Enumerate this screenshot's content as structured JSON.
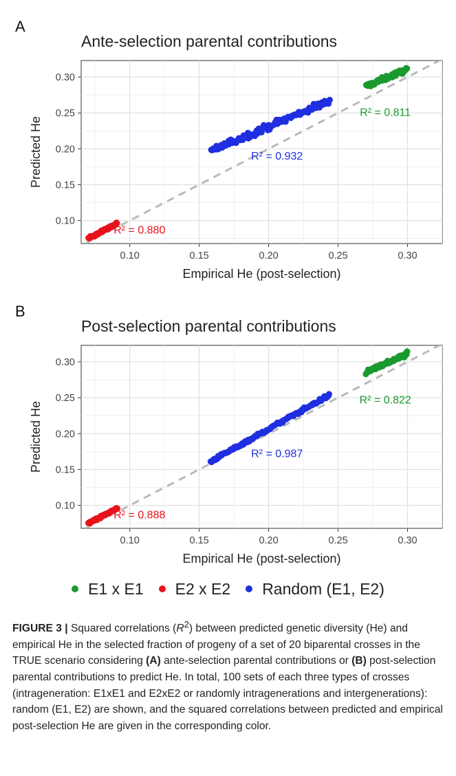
{
  "colors": {
    "E1xE1": "#1a9a2e",
    "E2xE2": "#e8121b",
    "Random": "#1f2fe0",
    "identity_line": "#b9b9b9",
    "grid": "#ebebeb"
  },
  "chart_data": [
    {
      "type": "scatter",
      "panel_label": "A",
      "title": "Ante-selection parental contributions",
      "xlabel": "Empirical He (post-selection)",
      "ylabel": "Predicted He",
      "xlim": [
        0.065,
        0.325
      ],
      "ylim": [
        0.068,
        0.323
      ],
      "xticks": [
        "0.10",
        "0.15",
        "0.20",
        "0.25",
        "0.30"
      ],
      "yticks": [
        "0.10",
        "0.15",
        "0.20",
        "0.25",
        "0.30"
      ],
      "identity_line": true,
      "grid": true,
      "series": [
        {
          "name": "E1 x E1",
          "color_key": "E1xE1",
          "x_range": [
            0.27,
            0.3
          ],
          "y_range": [
            0.287,
            0.311
          ],
          "n": 60,
          "noise": 0.003,
          "r2_label": "R² = 0.811",
          "r2_pos": [
            0.284,
            0.246
          ]
        },
        {
          "name": "E2 x E2",
          "color_key": "E2xE2",
          "x_range": [
            0.07,
            0.091
          ],
          "y_range": [
            0.075,
            0.096
          ],
          "n": 60,
          "noise": 0.0014,
          "r2_label": "R² = 0.880",
          "r2_pos": [
            0.107,
            0.082
          ]
        },
        {
          "name": "Random (E1, E2)",
          "color_key": "Random",
          "x_range": [
            0.158,
            0.244
          ],
          "y_range": [
            0.197,
            0.267
          ],
          "n": 110,
          "noise": 0.0045,
          "r2_label": "R² = 0.932",
          "r2_pos": [
            0.206,
            0.185
          ]
        }
      ]
    },
    {
      "type": "scatter",
      "panel_label": "B",
      "title": "Post-selection parental contributions",
      "xlabel": "Empirical He (post-selection)",
      "ylabel": "Predicted He",
      "xlim": [
        0.065,
        0.325
      ],
      "ylim": [
        0.068,
        0.323
      ],
      "xticks": [
        "0.10",
        "0.15",
        "0.20",
        "0.25",
        "0.30"
      ],
      "yticks": [
        "0.10",
        "0.15",
        "0.20",
        "0.25",
        "0.30"
      ],
      "identity_line": true,
      "grid": true,
      "series": [
        {
          "name": "E1 x E1",
          "color_key": "E1xE1",
          "x_range": [
            0.27,
            0.3
          ],
          "y_range": [
            0.286,
            0.311
          ],
          "n": 60,
          "noise": 0.0028,
          "r2_label": "R² = 0.822",
          "r2_pos": [
            0.284,
            0.242
          ]
        },
        {
          "name": "E2 x E2",
          "color_key": "E2xE2",
          "x_range": [
            0.07,
            0.091
          ],
          "y_range": [
            0.075,
            0.096
          ],
          "n": 60,
          "noise": 0.0012,
          "r2_label": "R² = 0.888",
          "r2_pos": [
            0.107,
            0.082
          ]
        },
        {
          "name": "Random (E1, E2)",
          "color_key": "Random",
          "x_range": [
            0.158,
            0.244
          ],
          "y_range": [
            0.161,
            0.254
          ],
          "n": 110,
          "noise": 0.002,
          "r2_label": "R² = 0.987",
          "r2_pos": [
            0.206,
            0.167
          ]
        }
      ]
    }
  ],
  "legend": [
    {
      "label": "E1 x E1",
      "color_key": "E1xE1"
    },
    {
      "label": "E2 x E2",
      "color_key": "E2xE2"
    },
    {
      "label": "Random (E1, E2)",
      "color_key": "Random"
    }
  ],
  "caption": {
    "lead": "FIGURE 3 |",
    "s1": " Squared correlations (",
    "r2_italic": "R",
    "r2_sup": "2",
    "s2": ") between predicted genetic diversity (He) and empirical He in the selected fraction of progeny of a set of 20 biparental crosses in the TRUE scenario considering ",
    "bold_a": "(A)",
    "s3": " ante-selection parental contributions or ",
    "bold_b": "(B)",
    "s4": " post-selection parental contributions to predict He. In total, 100 sets of each three types of crosses (intrageneration: E1xE1 and E2xE2 or randomly intragenerations and intergenerations): random (E1, E2) are shown, and the squared correlations between predicted and empirical post-selection He are given in the corresponding color."
  }
}
